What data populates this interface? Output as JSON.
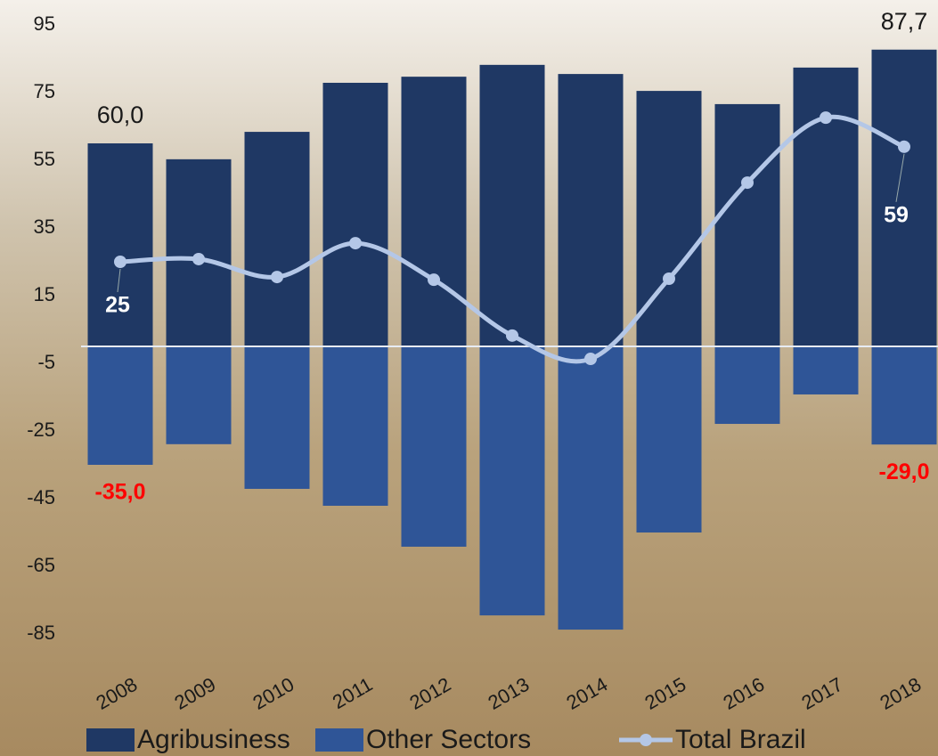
{
  "chart_data": {
    "type": "bar-line",
    "categories": [
      "2008",
      "2009",
      "2010",
      "2011",
      "2012",
      "2013",
      "2014",
      "2015",
      "2016",
      "2017",
      "2018"
    ],
    "series": [
      {
        "name": "Agribusiness",
        "color": "#1f3864",
        "type": "bar",
        "values": [
          60.0,
          55.3,
          63.4,
          77.9,
          79.7,
          83.2,
          80.5,
          75.5,
          71.6,
          82.4,
          87.7
        ],
        "value_labels": [
          "60,0",
          null,
          null,
          null,
          null,
          null,
          null,
          null,
          null,
          null,
          "87,7"
        ]
      },
      {
        "name": "Other Sectors",
        "color": "#2f5597",
        "type": "bar",
        "values": [
          -35.0,
          -28.9,
          -42.1,
          -47.1,
          -59.2,
          -79.5,
          -83.7,
          -55.0,
          -22.9,
          -14.2,
          -29.0
        ],
        "value_labels": [
          "-35,0",
          null,
          null,
          null,
          null,
          null,
          null,
          null,
          null,
          null,
          "-29,0"
        ]
      },
      {
        "name": "Total Brazil",
        "color": "#b4c7e7",
        "type": "line",
        "values": [
          25,
          25.8,
          20.5,
          30.5,
          19.7,
          3.2,
          -3.7,
          20,
          48.4,
          67.6,
          59
        ],
        "value_labels": [
          "25",
          null,
          null,
          null,
          null,
          null,
          null,
          null,
          null,
          null,
          "59"
        ]
      }
    ],
    "ylim": [
      -95,
      95
    ],
    "yticks": [
      95,
      75,
      55,
      35,
      15,
      -5,
      -25,
      -45,
      -65,
      -85
    ],
    "legend": "bottom"
  }
}
